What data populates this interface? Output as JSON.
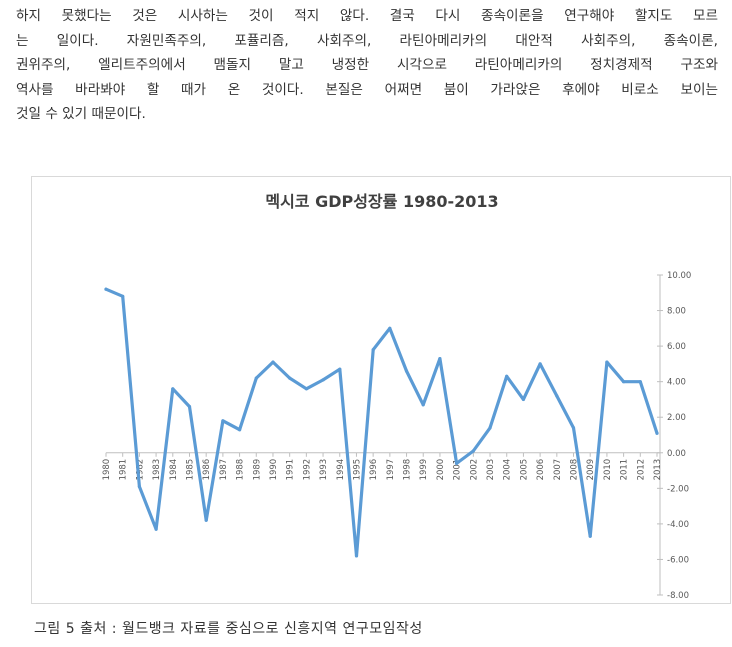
{
  "paragraph": {
    "lines": [
      "하지 못했다는 것은 시사하는 것이 적지 않다. 결국 다시 종속이론을 연구해야 할지도 모르",
      "는 일이다. 자원민족주의, 포퓰리즘, 사회주의, 라틴아메리카의 대안적 사회주의, 종속이론,",
      "권위주의, 엘리트주의에서 맴돌지 말고 냉정한 시각으로 라틴아메리카의 정치경제적 구조와",
      "역사를 바라봐야 할 때가 온 것이다. 본질은 어쩌면 붐이 가라앉은 후에야 비로소 보이는",
      "것일 수 있기 때문이다."
    ]
  },
  "chart_data": {
    "type": "line",
    "title": "멕시코 GDP성장률 1980-2013",
    "xlabel": "",
    "ylabel": "",
    "ylim": [
      -8,
      10
    ],
    "yticks": [
      10,
      8,
      6,
      4,
      2,
      0,
      -2,
      -4,
      -6,
      -8
    ],
    "ytick_labels": [
      "10.00",
      "8.00",
      "6.00",
      "4.00",
      "2.00",
      "0.00",
      "-2.00",
      "-4.00",
      "-6.00",
      "-8.00"
    ],
    "categories": [
      "1980",
      "1981",
      "1982",
      "1983",
      "1984",
      "1985",
      "1986",
      "1987",
      "1988",
      "1989",
      "1990",
      "1991",
      "1992",
      "1993",
      "1994",
      "1995",
      "1996",
      "1997",
      "1998",
      "1999",
      "2000",
      "2001",
      "2002",
      "2003",
      "2004",
      "2005",
      "2006",
      "2007",
      "2008",
      "2009",
      "2010",
      "2011",
      "2012",
      "2013"
    ],
    "series": [
      {
        "values": [
          9.2,
          8.8,
          -1.9,
          -4.3,
          3.6,
          2.6,
          -3.8,
          1.8,
          1.3,
          4.2,
          5.1,
          4.2,
          3.6,
          4.1,
          4.7,
          -5.8,
          5.8,
          7.0,
          4.6,
          2.7,
          5.3,
          -0.6,
          0.1,
          1.4,
          4.3,
          3.0,
          5.0,
          3.2,
          1.4,
          -4.7,
          5.1,
          4.0,
          4.0,
          1.1
        ],
        "color": "#5b9bd5"
      }
    ],
    "grid": false,
    "legend": "none"
  },
  "caption": "그림 5 출처 : 월드뱅크 자료를 중심으로 신흥지역 연구모임작성"
}
